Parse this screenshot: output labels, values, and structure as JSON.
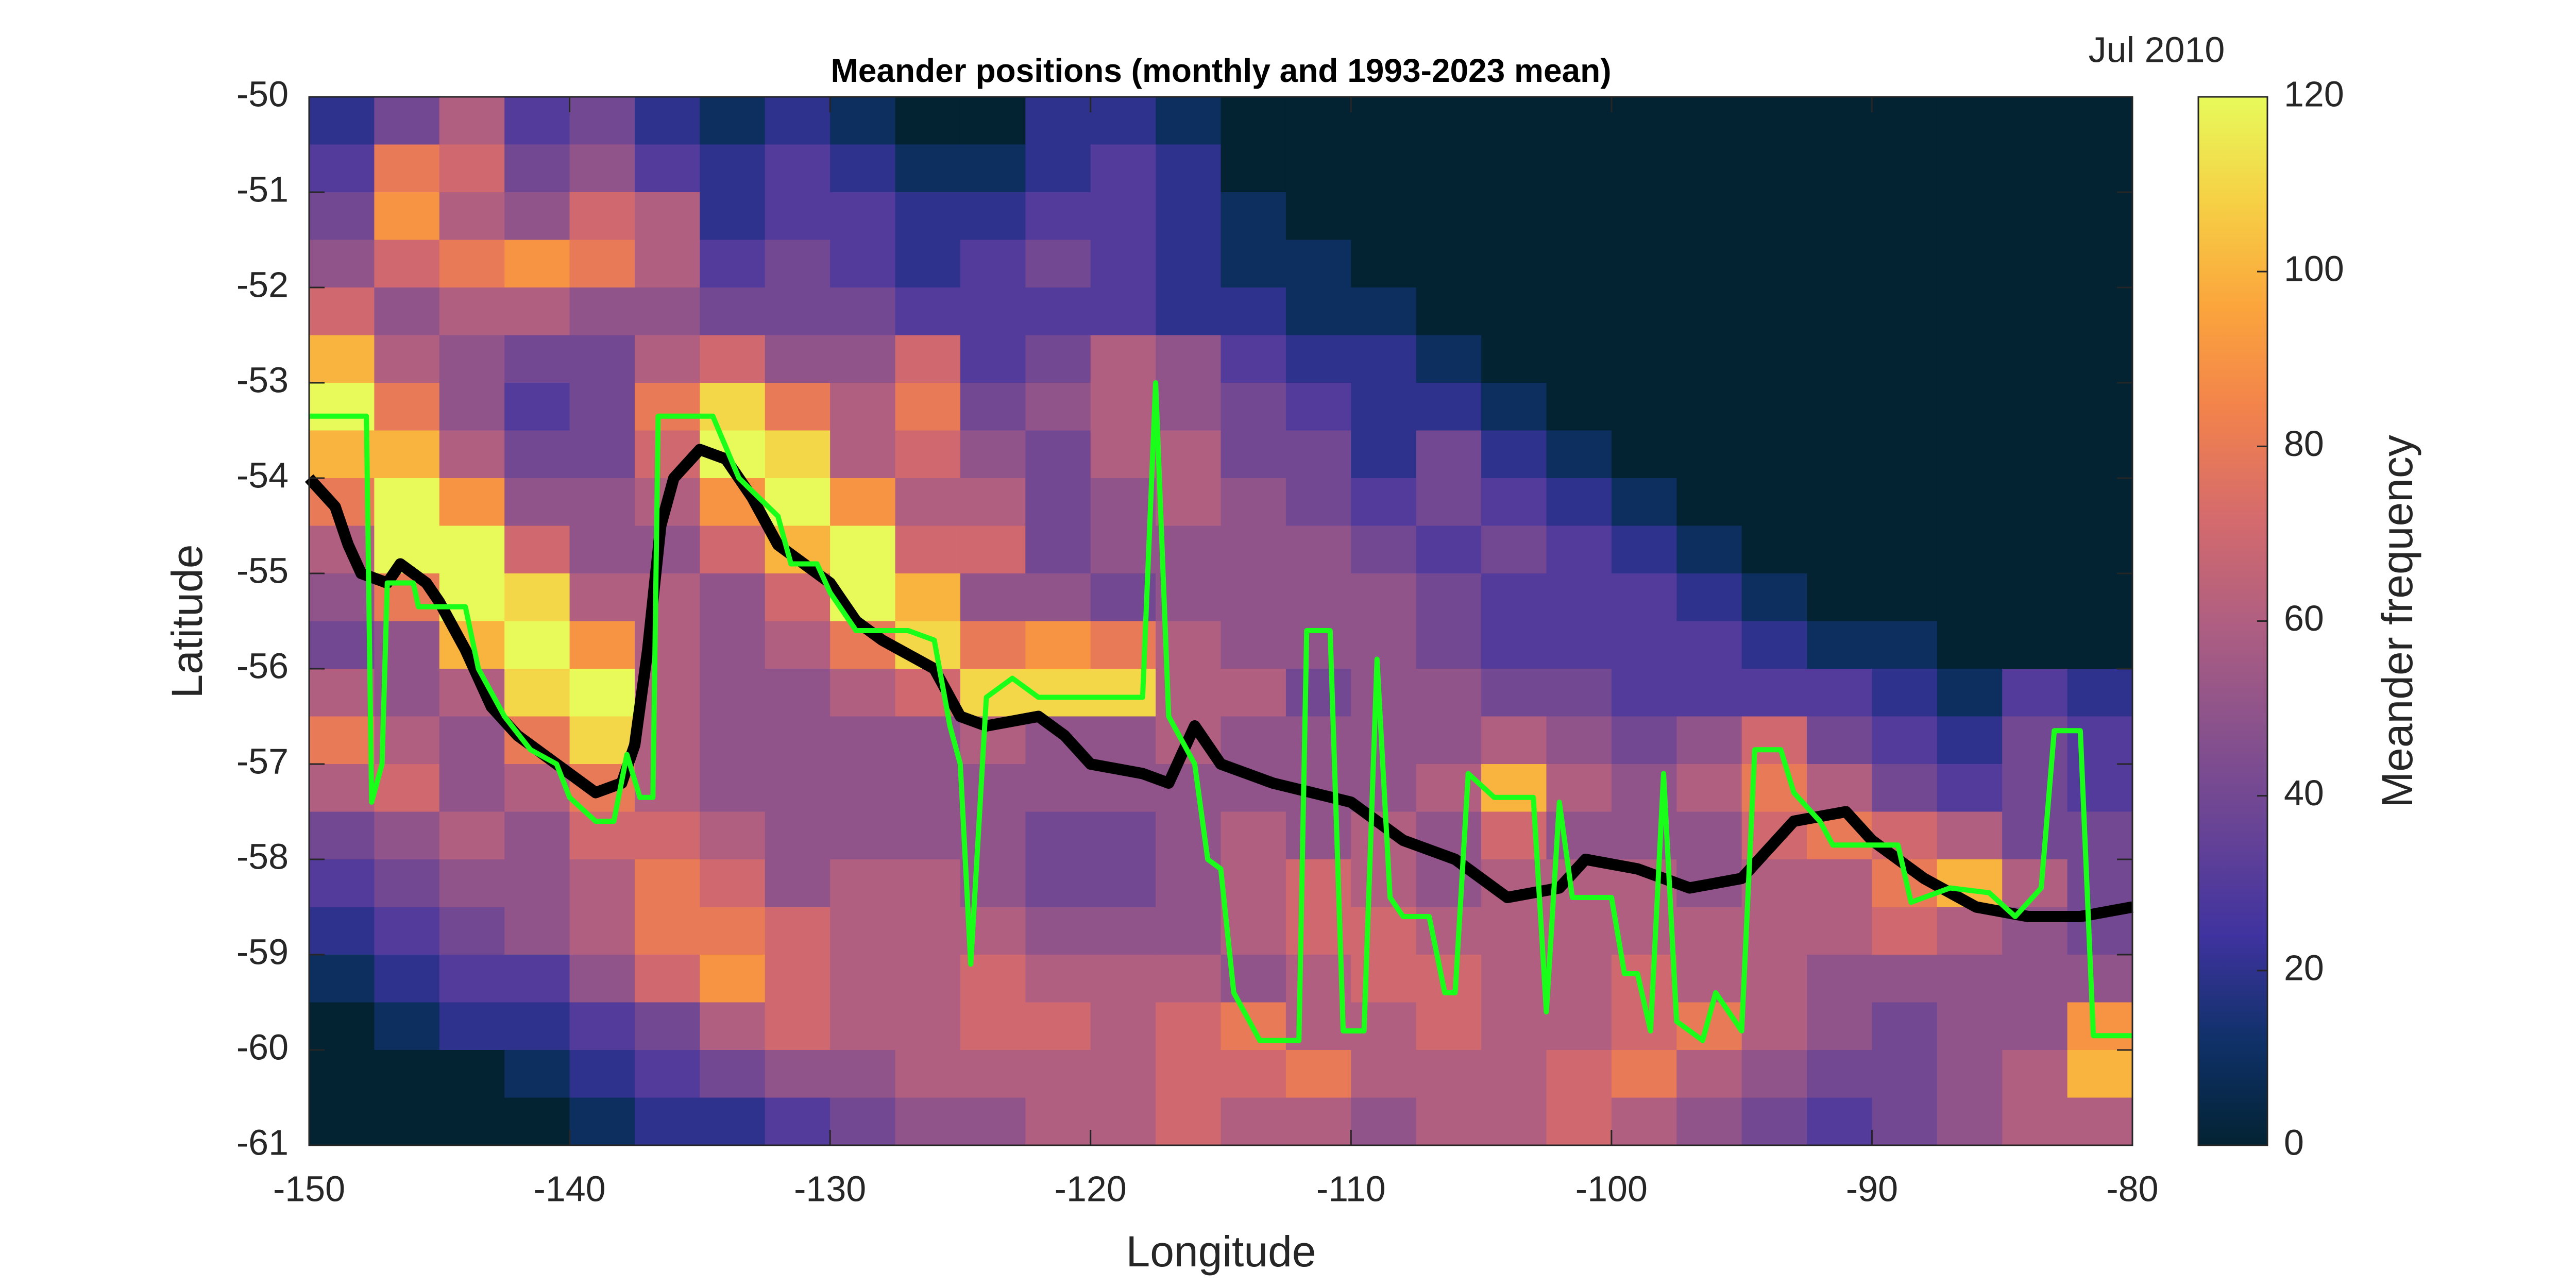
{
  "chart_data": {
    "type": "heatmap",
    "title": "Meander positions (monthly and 1993-2023 mean)",
    "annotation": "Jul 2010",
    "x_label": "Longitude",
    "y_label": "Latitude",
    "colorbar_label": "Meander frequency",
    "xlim": [
      -150,
      -80
    ],
    "ylim": [
      -61,
      -50
    ],
    "xticks": [
      -150,
      -140,
      -130,
      -120,
      -110,
      -100,
      -90,
      -80
    ],
    "yticks": [
      -61,
      -60,
      -59,
      -58,
      -57,
      -56,
      -55,
      -54,
      -53,
      -52,
      -51,
      -50
    ],
    "clim": [
      0,
      120
    ],
    "cticks": [
      0,
      20,
      40,
      60,
      80,
      100,
      120
    ],
    "colormap": [
      "#032333",
      "#0f3169",
      "#3f339f",
      "#674396",
      "#8a528c",
      "#b05f81",
      "#d56b6c",
      "#f2824c",
      "#fba53c",
      "#f6d045",
      "#e7fa5a"
    ],
    "heatmap": {
      "x": [
        -148.75,
        -146.25,
        -143.75,
        -141.25,
        -138.75,
        -136.25,
        -133.75,
        -131.25,
        -128.75,
        -126.25,
        -123.75,
        -121.25,
        -118.75,
        -116.25,
        -113.75,
        -111.25,
        -108.75,
        -106.25,
        -103.75,
        -101.25,
        -98.75,
        -96.25,
        -93.75,
        -91.25,
        -88.75,
        -86.25,
        -83.75,
        -81.25
      ],
      "y": [
        -50.25,
        -50.75,
        -51.25,
        -51.75,
        -52.25,
        -52.75,
        -53.25,
        -53.75,
        -54.25,
        -54.75,
        -55.25,
        -55.75,
        -56.25,
        -56.75,
        -57.25,
        -57.75,
        -58.25,
        -58.75,
        -59.25,
        -59.75,
        -60.25,
        -60.75
      ],
      "z": [
        [
          20,
          40,
          60,
          30,
          40,
          20,
          10,
          20,
          10,
          0,
          0,
          20,
          20,
          10,
          0,
          0,
          0,
          0,
          0,
          0,
          0,
          0,
          0,
          0,
          0,
          0,
          0,
          0
        ],
        [
          30,
          80,
          70,
          40,
          50,
          30,
          20,
          30,
          20,
          10,
          10,
          20,
          30,
          20,
          0,
          0,
          0,
          0,
          0,
          0,
          0,
          0,
          0,
          0,
          0,
          0,
          0,
          0
        ],
        [
          40,
          90,
          60,
          50,
          70,
          60,
          20,
          30,
          30,
          20,
          20,
          30,
          30,
          20,
          10,
          0,
          0,
          0,
          0,
          0,
          0,
          0,
          0,
          0,
          0,
          0,
          0,
          0
        ],
        [
          50,
          70,
          80,
          90,
          80,
          60,
          30,
          40,
          30,
          20,
          30,
          40,
          30,
          20,
          10,
          10,
          0,
          0,
          0,
          0,
          0,
          0,
          0,
          0,
          0,
          0,
          0,
          0
        ],
        [
          70,
          50,
          60,
          60,
          50,
          50,
          40,
          40,
          40,
          30,
          30,
          30,
          30,
          20,
          20,
          10,
          10,
          0,
          0,
          0,
          0,
          0,
          0,
          0,
          0,
          0,
          0,
          0
        ],
        [
          100,
          60,
          50,
          40,
          40,
          60,
          70,
          50,
          50,
          70,
          30,
          40,
          60,
          50,
          30,
          20,
          20,
          10,
          0,
          0,
          0,
          0,
          0,
          0,
          0,
          0,
          0,
          0
        ],
        [
          120,
          80,
          50,
          30,
          40,
          80,
          110,
          80,
          60,
          80,
          40,
          50,
          60,
          50,
          40,
          30,
          20,
          20,
          10,
          0,
          0,
          0,
          0,
          0,
          0,
          0,
          0,
          0
        ],
        [
          100,
          100,
          60,
          40,
          40,
          70,
          120,
          110,
          60,
          70,
          50,
          40,
          60,
          60,
          40,
          40,
          20,
          40,
          20,
          10,
          0,
          0,
          0,
          0,
          0,
          0,
          0,
          0
        ],
        [
          80,
          120,
          90,
          50,
          50,
          60,
          90,
          120,
          90,
          60,
          60,
          40,
          50,
          60,
          50,
          40,
          30,
          40,
          30,
          20,
          10,
          0,
          0,
          0,
          0,
          0,
          0,
          0
        ],
        [
          60,
          120,
          120,
          70,
          50,
          50,
          70,
          100,
          120,
          70,
          70,
          40,
          50,
          50,
          50,
          50,
          40,
          30,
          40,
          30,
          20,
          10,
          0,
          0,
          0,
          0,
          0,
          0
        ],
        [
          50,
          80,
          120,
          110,
          60,
          60,
          50,
          70,
          120,
          100,
          50,
          50,
          40,
          50,
          50,
          50,
          50,
          40,
          30,
          30,
          30,
          20,
          10,
          0,
          0,
          0,
          0,
          0
        ],
        [
          40,
          50,
          100,
          120,
          90,
          60,
          50,
          60,
          80,
          110,
          80,
          90,
          80,
          60,
          50,
          50,
          50,
          40,
          30,
          30,
          30,
          30,
          20,
          10,
          10,
          0,
          0,
          0
        ],
        [
          60,
          50,
          60,
          110,
          120,
          60,
          50,
          50,
          60,
          70,
          110,
          110,
          110,
          60,
          60,
          40,
          50,
          50,
          40,
          40,
          30,
          30,
          30,
          30,
          20,
          10,
          30,
          20
        ],
        [
          80,
          60,
          50,
          80,
          110,
          60,
          50,
          50,
          50,
          50,
          60,
          50,
          50,
          60,
          50,
          50,
          50,
          50,
          60,
          50,
          40,
          50,
          70,
          40,
          30,
          20,
          40,
          30
        ],
        [
          60,
          70,
          50,
          60,
          80,
          60,
          50,
          50,
          50,
          50,
          50,
          50,
          50,
          50,
          50,
          50,
          50,
          60,
          100,
          60,
          50,
          60,
          80,
          60,
          40,
          30,
          40,
          30
        ],
        [
          40,
          50,
          60,
          50,
          70,
          70,
          60,
          50,
          50,
          50,
          50,
          40,
          40,
          50,
          60,
          50,
          60,
          50,
          70,
          50,
          50,
          50,
          70,
          80,
          70,
          60,
          40,
          40
        ],
        [
          30,
          40,
          50,
          50,
          60,
          80,
          70,
          50,
          60,
          60,
          50,
          40,
          40,
          50,
          60,
          70,
          60,
          50,
          60,
          60,
          60,
          50,
          60,
          60,
          80,
          100,
          60,
          40
        ],
        [
          20,
          30,
          40,
          50,
          60,
          80,
          80,
          70,
          60,
          60,
          60,
          50,
          50,
          50,
          60,
          70,
          70,
          60,
          60,
          60,
          60,
          60,
          60,
          60,
          70,
          60,
          50,
          40
        ],
        [
          10,
          20,
          30,
          30,
          50,
          70,
          90,
          70,
          60,
          60,
          70,
          60,
          60,
          60,
          50,
          60,
          70,
          70,
          60,
          60,
          70,
          60,
          60,
          50,
          50,
          50,
          50,
          50
        ],
        [
          0,
          10,
          20,
          20,
          30,
          40,
          60,
          70,
          60,
          60,
          70,
          70,
          60,
          70,
          80,
          60,
          60,
          70,
          60,
          60,
          70,
          80,
          60,
          50,
          40,
          50,
          50,
          90
        ],
        [
          0,
          0,
          0,
          10,
          20,
          30,
          40,
          50,
          50,
          60,
          60,
          60,
          60,
          70,
          70,
          80,
          60,
          60,
          60,
          70,
          80,
          60,
          50,
          40,
          40,
          50,
          60,
          100
        ],
        [
          0,
          0,
          0,
          0,
          10,
          20,
          20,
          30,
          40,
          50,
          50,
          60,
          60,
          70,
          60,
          60,
          50,
          60,
          60,
          70,
          60,
          50,
          40,
          30,
          40,
          50,
          60,
          60
        ]
      ]
    },
    "series": [
      {
        "color": "#000000",
        "x": [
          -150,
          -149,
          -148.5,
          -148,
          -147,
          -146.5,
          -145.5,
          -145,
          -144,
          -143,
          -142,
          -141,
          -140,
          -139,
          -138,
          -137.5,
          -137,
          -136.5,
          -136,
          -135,
          -134,
          -133,
          -132,
          -130,
          -129,
          -128,
          -126,
          -125,
          -124,
          -122,
          -121,
          -120,
          -118,
          -117,
          -116,
          -115,
          -113,
          -110,
          -108,
          -106,
          -104,
          -102,
          -101,
          -99,
          -97,
          -95,
          -94,
          -93,
          -91,
          -90,
          -88,
          -86,
          -84,
          -82,
          -80
        ],
        "values": [
          -54,
          -54.3,
          -54.7,
          -55,
          -55.1,
          -54.9,
          -55.1,
          -55.3,
          -55.8,
          -56.4,
          -56.7,
          -56.9,
          -57.1,
          -57.3,
          -57.2,
          -56.8,
          -55.8,
          -54.5,
          -54,
          -53.7,
          -53.8,
          -54.2,
          -54.7,
          -55.1,
          -55.5,
          -55.7,
          -56,
          -56.5,
          -56.6,
          -56.5,
          -56.7,
          -57,
          -57.1,
          -57.2,
          -56.6,
          -57,
          -57.2,
          -57.4,
          -57.8,
          -58,
          -58.4,
          -58.3,
          -58,
          -58.1,
          -58.3,
          -58.2,
          -57.9,
          -57.6,
          -57.5,
          -57.8,
          -58.2,
          -58.5,
          -58.6,
          -58.6,
          -58.5
        ]
      },
      {
        "color": "#1aff1a",
        "x": [
          -150,
          -147.8,
          -147.6,
          -147.2,
          -147,
          -146,
          -145.8,
          -144,
          -143.5,
          -142.5,
          -141.5,
          -140.5,
          -140,
          -139,
          -138.3,
          -137.8,
          -137.3,
          -136.8,
          -136.6,
          -134.5,
          -133.5,
          -132,
          -131.5,
          -130.5,
          -130,
          -129,
          -127,
          -126,
          -125.4,
          -125,
          -124.6,
          -124,
          -123,
          -122,
          -121,
          -118,
          -117.5,
          -117,
          -116,
          -115.5,
          -115,
          -114.5,
          -113.5,
          -112,
          -111.7,
          -110.8,
          -110.3,
          -109.5,
          -109,
          -108.5,
          -108,
          -107,
          -106.4,
          -106,
          -105.5,
          -104.5,
          -103,
          -102.5,
          -102,
          -101.5,
          -100,
          -99.5,
          -99,
          -98.5,
          -98,
          -97.5,
          -96.5,
          -96,
          -95,
          -94.5,
          -93.5,
          -93,
          -92,
          -91.5,
          -89,
          -88.5,
          -87,
          -85.5,
          -84.5,
          -83.5,
          -83,
          -82,
          -81.5,
          -80
        ],
        "values": [
          -53.35,
          -53.35,
          -57.4,
          -57,
          -55.1,
          -55.1,
          -55.35,
          -55.35,
          -56,
          -56.5,
          -56.85,
          -57,
          -57.35,
          -57.6,
          -57.6,
          -56.9,
          -57.35,
          -57.35,
          -53.35,
          -53.35,
          -54,
          -54.4,
          -54.9,
          -54.9,
          -55.2,
          -55.6,
          -55.6,
          -55.7,
          -56.6,
          -57,
          -59.1,
          -56.3,
          -56.1,
          -56.3,
          -56.3,
          -56.3,
          -53,
          -56.5,
          -57,
          -58,
          -58.1,
          -59.4,
          -59.9,
          -59.9,
          -55.6,
          -55.6,
          -59.8,
          -59.8,
          -55.9,
          -58.4,
          -58.6,
          -58.6,
          -59.4,
          -59.4,
          -57.1,
          -57.35,
          -57.35,
          -59.6,
          -57.4,
          -58.4,
          -58.4,
          -59.2,
          -59.2,
          -59.8,
          -57.1,
          -59.7,
          -59.9,
          -59.4,
          -59.8,
          -56.85,
          -56.85,
          -57.3,
          -57.6,
          -57.85,
          -57.85,
          -58.45,
          -58.3,
          -58.35,
          -58.6,
          -58.3,
          -56.65,
          -56.65,
          -59.85,
          -59.85
        ]
      }
    ]
  }
}
